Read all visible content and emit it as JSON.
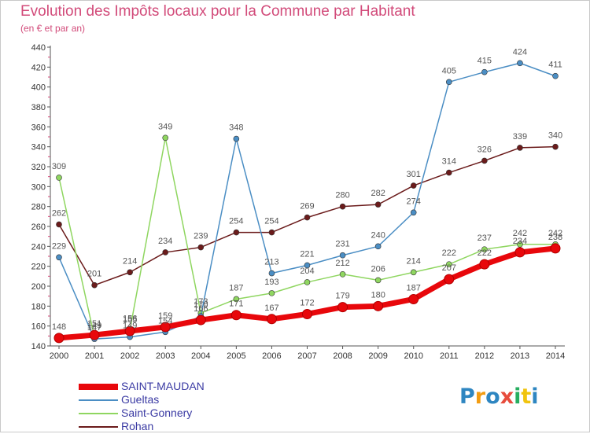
{
  "chart_data": {
    "type": "line",
    "title": "Evolution des Impôts locaux pour la Commune par Habitant",
    "subtitle": "(en € et par an)",
    "categories": [
      "2000",
      "2001",
      "2002",
      "2003",
      "2004",
      "2005",
      "2006",
      "2007",
      "2008",
      "2009",
      "2010",
      "2011",
      "2012",
      "2013",
      "2014"
    ],
    "ylim": [
      140,
      440
    ],
    "yticks": [
      140,
      160,
      180,
      200,
      220,
      240,
      260,
      280,
      300,
      320,
      340,
      360,
      380,
      400,
      420,
      440
    ],
    "grid": false,
    "legend_position": "bottom-left",
    "series": [
      {
        "name": "SAINT-MAUDAN",
        "color": "#e8070b",
        "values": [
          148,
          151,
          155,
          159,
          166,
          171,
          167,
          172,
          179,
          180,
          187,
          207,
          222,
          234,
          238
        ]
      },
      {
        "name": "Gueltas",
        "color": "#4b8ec4",
        "values": [
          229,
          147,
          149,
          154,
          170,
          348,
          213,
          221,
          231,
          240,
          274,
          405,
          415,
          424,
          411
        ]
      },
      {
        "name": "Saint-Gonnery",
        "color": "#8fd660",
        "values": [
          309,
          149,
          156,
          349,
          173,
          187,
          193,
          204,
          212,
          206,
          214,
          222,
          237,
          242,
          242
        ]
      },
      {
        "name": "Rohan",
        "color": "#6b1b1b",
        "values": [
          262,
          201,
          214,
          234,
          239,
          254,
          254,
          269,
          280,
          282,
          301,
          314,
          326,
          339,
          340
        ]
      }
    ]
  },
  "brand": {
    "letters": [
      "P",
      "r",
      "o",
      "x",
      "i",
      "t",
      "i"
    ],
    "colors": [
      "#2e86c1",
      "#f39c12",
      "#2e86c1",
      "#e74c3c",
      "#27ae60",
      "#f1c40f",
      "#2e86c1"
    ]
  }
}
